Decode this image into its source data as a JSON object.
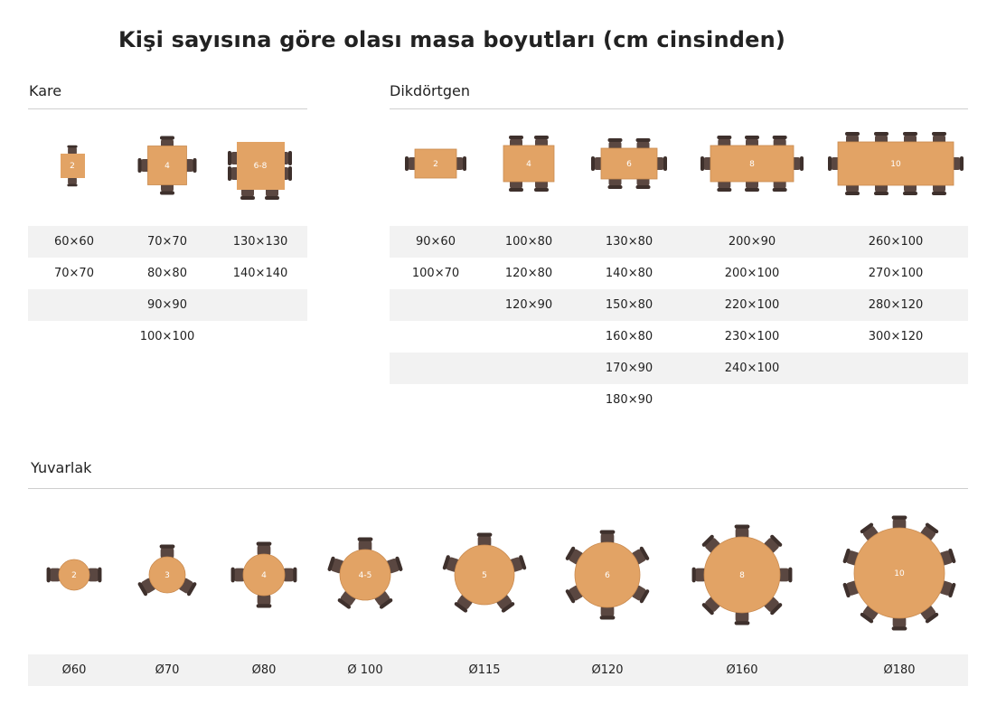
{
  "title": "Kişi sayısına göre olası masa boyutları (cm cinsinden)",
  "colors": {
    "wood": "#e2a365",
    "chair": "#5a4741",
    "shade": "#f2f2f2",
    "rule": "#cfcfcf"
  },
  "kare": {
    "title": "Kare",
    "illustrations": [
      {
        "label": "2"
      },
      {
        "label": "4"
      },
      {
        "label": "6-8"
      }
    ],
    "table": [
      [
        "60×60",
        "70×70",
        "130×130"
      ],
      [
        "70×70",
        "80×80",
        "140×140"
      ],
      [
        "",
        "90×90",
        ""
      ],
      [
        "",
        "100×100",
        ""
      ]
    ]
  },
  "dikdortgen": {
    "title": "Dikdörtgen",
    "illustrations": [
      {
        "label": "2"
      },
      {
        "label": "4"
      },
      {
        "label": "6"
      },
      {
        "label": "8"
      },
      {
        "label": "10"
      }
    ],
    "table": [
      [
        "90×60",
        "100×80",
        "130×80",
        "200×90",
        "260×100"
      ],
      [
        "100×70",
        "120×80",
        "140×80",
        "200×100",
        "270×100"
      ],
      [
        "",
        "120×90",
        "150×80",
        "220×100",
        "280×120"
      ],
      [
        "",
        "",
        "160×80",
        "230×100",
        "300×120"
      ],
      [
        "",
        "",
        "170×90",
        "240×100",
        ""
      ],
      [
        "",
        "",
        "180×90",
        "",
        ""
      ]
    ]
  },
  "yuvarlak": {
    "title": "Yuvarlak",
    "illustrations": [
      {
        "label": "2"
      },
      {
        "label": "3"
      },
      {
        "label": "4"
      },
      {
        "label": "4-5"
      },
      {
        "label": "5"
      },
      {
        "label": "6"
      },
      {
        "label": "8"
      },
      {
        "label": "10"
      }
    ],
    "table": [
      [
        "Ø60",
        "Ø70",
        "Ø80",
        "Ø 100",
        "Ø115",
        "Ø120",
        "Ø160",
        "Ø180"
      ]
    ]
  }
}
